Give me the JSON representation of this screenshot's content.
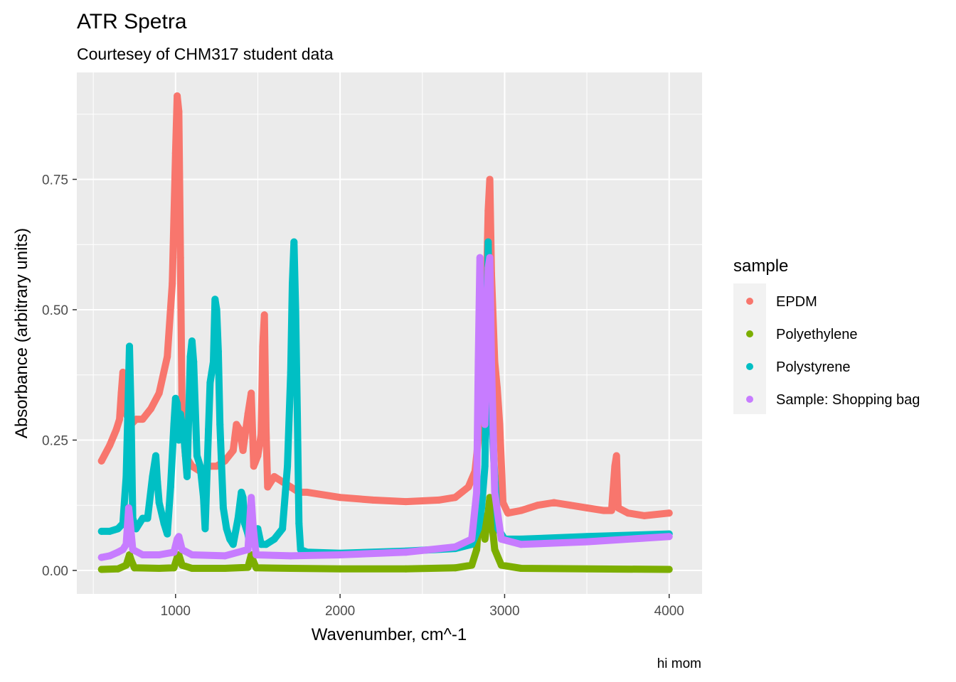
{
  "chart_data": {
    "type": "scatter",
    "title": "ATR Spetra",
    "subtitle": "Courtesey of CHM317 student data",
    "caption": "hi mom",
    "xlabel": "Wavenumber, cm^-1",
    "ylabel": "Absorbance (arbitrary units)",
    "xlim": [
      400,
      4200
    ],
    "ylim": [
      -0.045,
      0.955
    ],
    "x_ticks": [
      1000,
      2000,
      3000,
      4000
    ],
    "x_tick_labels": [
      "1000",
      "2000",
      "3000",
      "4000"
    ],
    "y_ticks": [
      0,
      0.25,
      0.5,
      0.75
    ],
    "y_tick_labels": [
      "0.00",
      "0.25",
      "0.50",
      "0.75"
    ],
    "grid": true,
    "legend_title": "sample",
    "legend_position": "right",
    "series": [
      {
        "name": "EPDM",
        "color": "#F8766D",
        "points": [
          [
            550,
            0.21
          ],
          [
            600,
            0.24
          ],
          [
            640,
            0.27
          ],
          [
            660,
            0.29
          ],
          [
            670,
            0.34
          ],
          [
            680,
            0.38
          ],
          [
            690,
            0.33
          ],
          [
            700,
            0.3
          ],
          [
            730,
            0.28
          ],
          [
            760,
            0.29
          ],
          [
            800,
            0.29
          ],
          [
            850,
            0.31
          ],
          [
            900,
            0.34
          ],
          [
            950,
            0.41
          ],
          [
            980,
            0.55
          ],
          [
            1000,
            0.8
          ],
          [
            1010,
            0.91
          ],
          [
            1020,
            0.88
          ],
          [
            1030,
            0.6
          ],
          [
            1040,
            0.3
          ],
          [
            1060,
            0.22
          ],
          [
            1100,
            0.2
          ],
          [
            1150,
            0.19
          ],
          [
            1200,
            0.2
          ],
          [
            1250,
            0.2
          ],
          [
            1300,
            0.21
          ],
          [
            1350,
            0.23
          ],
          [
            1370,
            0.28
          ],
          [
            1390,
            0.27
          ],
          [
            1410,
            0.23
          ],
          [
            1440,
            0.3
          ],
          [
            1460,
            0.34
          ],
          [
            1475,
            0.2
          ],
          [
            1500,
            0.22
          ],
          [
            1520,
            0.26
          ],
          [
            1530,
            0.43
          ],
          [
            1540,
            0.49
          ],
          [
            1550,
            0.27
          ],
          [
            1560,
            0.16
          ],
          [
            1600,
            0.18
          ],
          [
            1650,
            0.17
          ],
          [
            1700,
            0.16
          ],
          [
            1750,
            0.15
          ],
          [
            1800,
            0.15
          ],
          [
            2000,
            0.14
          ],
          [
            2200,
            0.135
          ],
          [
            2400,
            0.132
          ],
          [
            2600,
            0.135
          ],
          [
            2700,
            0.14
          ],
          [
            2780,
            0.16
          ],
          [
            2820,
            0.19
          ],
          [
            2840,
            0.25
          ],
          [
            2850,
            0.36
          ],
          [
            2860,
            0.48
          ],
          [
            2870,
            0.33
          ],
          [
            2880,
            0.38
          ],
          [
            2890,
            0.55
          ],
          [
            2900,
            0.69
          ],
          [
            2910,
            0.75
          ],
          [
            2920,
            0.57
          ],
          [
            2940,
            0.4
          ],
          [
            2955,
            0.35
          ],
          [
            2970,
            0.28
          ],
          [
            2990,
            0.13
          ],
          [
            3020,
            0.11
          ],
          [
            3100,
            0.115
          ],
          [
            3200,
            0.125
          ],
          [
            3300,
            0.13
          ],
          [
            3400,
            0.125
          ],
          [
            3500,
            0.12
          ],
          [
            3600,
            0.115
          ],
          [
            3650,
            0.115
          ],
          [
            3670,
            0.2
          ],
          [
            3680,
            0.22
          ],
          [
            3690,
            0.12
          ],
          [
            3750,
            0.11
          ],
          [
            3850,
            0.105
          ],
          [
            4000,
            0.11
          ]
        ]
      },
      {
        "name": "Polyethylene",
        "color": "#7CAE00",
        "points": [
          [
            550,
            0.002
          ],
          [
            650,
            0.003
          ],
          [
            700,
            0.01
          ],
          [
            720,
            0.03
          ],
          [
            730,
            0.02
          ],
          [
            750,
            0.005
          ],
          [
            900,
            0.004
          ],
          [
            990,
            0.005
          ],
          [
            1010,
            0.025
          ],
          [
            1020,
            0.03
          ],
          [
            1040,
            0.01
          ],
          [
            1100,
            0.004
          ],
          [
            1300,
            0.004
          ],
          [
            1440,
            0.006
          ],
          [
            1460,
            0.03
          ],
          [
            1470,
            0.02
          ],
          [
            1490,
            0.005
          ],
          [
            1700,
            0.004
          ],
          [
            2000,
            0.003
          ],
          [
            2400,
            0.003
          ],
          [
            2700,
            0.005
          ],
          [
            2800,
            0.01
          ],
          [
            2830,
            0.04
          ],
          [
            2850,
            0.13
          ],
          [
            2860,
            0.1
          ],
          [
            2880,
            0.06
          ],
          [
            2900,
            0.11
          ],
          [
            2910,
            0.14
          ],
          [
            2920,
            0.1
          ],
          [
            2940,
            0.04
          ],
          [
            2980,
            0.01
          ],
          [
            3100,
            0.004
          ],
          [
            3500,
            0.003
          ],
          [
            4000,
            0.002
          ]
        ]
      },
      {
        "name": "Polystyrene",
        "color": "#00BFC4",
        "points": [
          [
            550,
            0.075
          ],
          [
            600,
            0.075
          ],
          [
            650,
            0.08
          ],
          [
            680,
            0.09
          ],
          [
            700,
            0.18
          ],
          [
            710,
            0.3
          ],
          [
            720,
            0.43
          ],
          [
            730,
            0.3
          ],
          [
            740,
            0.1
          ],
          [
            760,
            0.08
          ],
          [
            800,
            0.1
          ],
          [
            830,
            0.1
          ],
          [
            860,
            0.18
          ],
          [
            880,
            0.22
          ],
          [
            890,
            0.17
          ],
          [
            900,
            0.13
          ],
          [
            930,
            0.09
          ],
          [
            950,
            0.07
          ],
          [
            970,
            0.16
          ],
          [
            990,
            0.28
          ],
          [
            1000,
            0.33
          ],
          [
            1010,
            0.32
          ],
          [
            1020,
            0.25
          ],
          [
            1030,
            0.3
          ],
          [
            1050,
            0.26
          ],
          [
            1070,
            0.18
          ],
          [
            1090,
            0.41
          ],
          [
            1100,
            0.44
          ],
          [
            1110,
            0.4
          ],
          [
            1130,
            0.22
          ],
          [
            1150,
            0.2
          ],
          [
            1170,
            0.14
          ],
          [
            1180,
            0.08
          ],
          [
            1200,
            0.27
          ],
          [
            1210,
            0.36
          ],
          [
            1220,
            0.38
          ],
          [
            1230,
            0.4
          ],
          [
            1240,
            0.52
          ],
          [
            1250,
            0.5
          ],
          [
            1260,
            0.42
          ],
          [
            1270,
            0.28
          ],
          [
            1290,
            0.12
          ],
          [
            1310,
            0.08
          ],
          [
            1330,
            0.06
          ],
          [
            1350,
            0.05
          ],
          [
            1380,
            0.1
          ],
          [
            1400,
            0.15
          ],
          [
            1410,
            0.14
          ],
          [
            1420,
            0.09
          ],
          [
            1440,
            0.07
          ],
          [
            1450,
            0.05
          ],
          [
            1470,
            0.06
          ],
          [
            1490,
            0.07
          ],
          [
            1500,
            0.08
          ],
          [
            1520,
            0.05
          ],
          [
            1550,
            0.05
          ],
          [
            1600,
            0.06
          ],
          [
            1650,
            0.08
          ],
          [
            1680,
            0.2
          ],
          [
            1700,
            0.38
          ],
          [
            1710,
            0.55
          ],
          [
            1720,
            0.63
          ],
          [
            1730,
            0.5
          ],
          [
            1740,
            0.3
          ],
          [
            1750,
            0.09
          ],
          [
            1760,
            0.04
          ],
          [
            1800,
            0.035
          ],
          [
            2000,
            0.033
          ],
          [
            2400,
            0.037
          ],
          [
            2700,
            0.042
          ],
          [
            2800,
            0.05
          ],
          [
            2840,
            0.08
          ],
          [
            2860,
            0.12
          ],
          [
            2880,
            0.2
          ],
          [
            2900,
            0.63
          ],
          [
            2910,
            0.4
          ],
          [
            2920,
            0.3
          ],
          [
            2940,
            0.18
          ],
          [
            2960,
            0.08
          ],
          [
            3000,
            0.06
          ],
          [
            3100,
            0.06
          ],
          [
            3500,
            0.065
          ],
          [
            4000,
            0.07
          ]
        ]
      },
      {
        "name": "Sample: Shopping bag",
        "color": "#C77CFF",
        "points": [
          [
            550,
            0.025
          ],
          [
            600,
            0.028
          ],
          [
            650,
            0.035
          ],
          [
            680,
            0.04
          ],
          [
            700,
            0.05
          ],
          [
            715,
            0.12
          ],
          [
            725,
            0.09
          ],
          [
            740,
            0.04
          ],
          [
            800,
            0.03
          ],
          [
            900,
            0.03
          ],
          [
            990,
            0.035
          ],
          [
            1010,
            0.06
          ],
          [
            1020,
            0.065
          ],
          [
            1040,
            0.04
          ],
          [
            1100,
            0.03
          ],
          [
            1300,
            0.028
          ],
          [
            1440,
            0.04
          ],
          [
            1460,
            0.14
          ],
          [
            1470,
            0.09
          ],
          [
            1490,
            0.03
          ],
          [
            1700,
            0.028
          ],
          [
            2000,
            0.03
          ],
          [
            2400,
            0.035
          ],
          [
            2700,
            0.045
          ],
          [
            2800,
            0.06
          ],
          [
            2830,
            0.15
          ],
          [
            2840,
            0.4
          ],
          [
            2850,
            0.6
          ],
          [
            2860,
            0.45
          ],
          [
            2870,
            0.3
          ],
          [
            2880,
            0.28
          ],
          [
            2890,
            0.45
          ],
          [
            2900,
            0.58
          ],
          [
            2910,
            0.6
          ],
          [
            2920,
            0.4
          ],
          [
            2940,
            0.15
          ],
          [
            2980,
            0.06
          ],
          [
            3100,
            0.05
          ],
          [
            3500,
            0.055
          ],
          [
            4000,
            0.065
          ]
        ]
      }
    ]
  }
}
